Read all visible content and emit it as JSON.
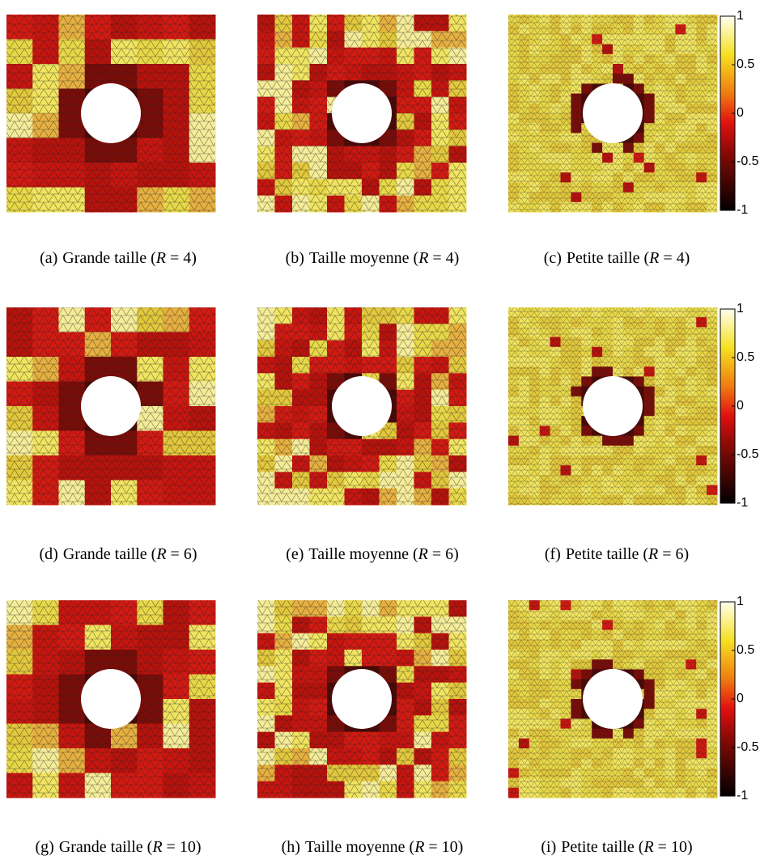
{
  "rows": [
    {
      "panels": [
        {
          "label": "(a)",
          "text": "Grande taille (",
          "var": "R",
          "rest": " = 4)"
        },
        {
          "label": "(b)",
          "text": "Taille moyenne (",
          "var": "R",
          "rest": " = 4)"
        },
        {
          "label": "(c)",
          "text": "Petite taille (",
          "var": "R",
          "rest": " = 4)"
        }
      ],
      "colorbar": {
        "clim": [
          -1,
          1
        ],
        "ticks": [
          1,
          0.5,
          0,
          -0.5,
          -1
        ]
      }
    },
    {
      "panels": [
        {
          "label": "(d)",
          "text": "Grande taille (",
          "var": "R",
          "rest": " = 6)"
        },
        {
          "label": "(e)",
          "text": "Taille moyenne (",
          "var": "R",
          "rest": " = 6)"
        },
        {
          "label": "(f)",
          "text": "Petite taille (",
          "var": "R",
          "rest": " = 6)"
        }
      ],
      "colorbar": {
        "clim": [
          -1,
          1
        ],
        "ticks": [
          1,
          0.5,
          0,
          -0.5,
          -1
        ]
      }
    },
    {
      "panels": [
        {
          "label": "(g)",
          "text": "Grande taille (",
          "var": "R",
          "rest": " = 10)"
        },
        {
          "label": "(h)",
          "text": "Taille moyenne (",
          "var": "R",
          "rest": " = 10)"
        },
        {
          "label": "(i)",
          "text": "Petite taille (",
          "var": "R",
          "rest": " = 10)"
        }
      ],
      "colorbar": {
        "clim": [
          -1,
          1
        ],
        "ticks": [
          1,
          0.5,
          0,
          -0.5,
          -1
        ]
      }
    }
  ]
}
